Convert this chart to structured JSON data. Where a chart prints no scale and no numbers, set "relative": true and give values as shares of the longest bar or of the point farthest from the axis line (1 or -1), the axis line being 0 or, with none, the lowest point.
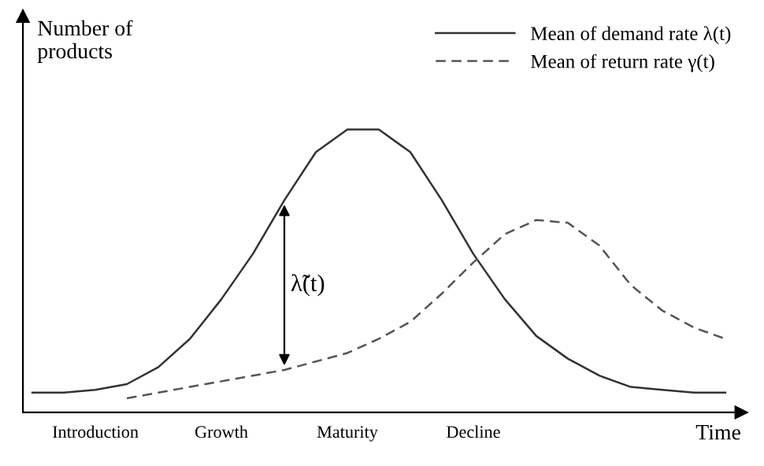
{
  "chart_data": {
    "type": "line",
    "relative": true,
    "ylabel": "Number of\nproducts",
    "xlabel": "Time",
    "categories": [
      null,
      null,
      "Introduction",
      null,
      null,
      null,
      "Growth",
      null,
      null,
      null,
      "Maturity",
      null,
      null,
      null,
      "Decline",
      null,
      null,
      null,
      null,
      null,
      null,
      null,
      null
    ],
    "series": [
      {
        "name": "Mean of demand rate λ(t)",
        "color": "#333333",
        "line_style": "solid",
        "values": [
          0.07,
          0.07,
          0.08,
          0.1,
          0.16,
          0.26,
          0.4,
          0.56,
          0.75,
          0.92,
          1.0,
          1.0,
          0.92,
          0.75,
          0.56,
          0.4,
          0.27,
          0.19,
          0.13,
          0.09,
          0.08,
          0.07,
          0.07
        ]
      },
      {
        "name": "Mean of return rate γ(t)",
        "color": "#555555",
        "line_style": "dashed",
        "values": [
          null,
          null,
          null,
          0.05,
          0.07,
          0.09,
          0.11,
          0.13,
          0.15,
          0.18,
          0.21,
          0.26,
          0.32,
          0.42,
          0.53,
          0.63,
          0.68,
          0.67,
          0.59,
          0.45,
          0.36,
          0.3,
          0.26
        ]
      }
    ],
    "annotations": [
      "λ̃(t)"
    ],
    "legend": "top right",
    "grid": false,
    "marker": "none",
    "tick_labels": "x"
  }
}
